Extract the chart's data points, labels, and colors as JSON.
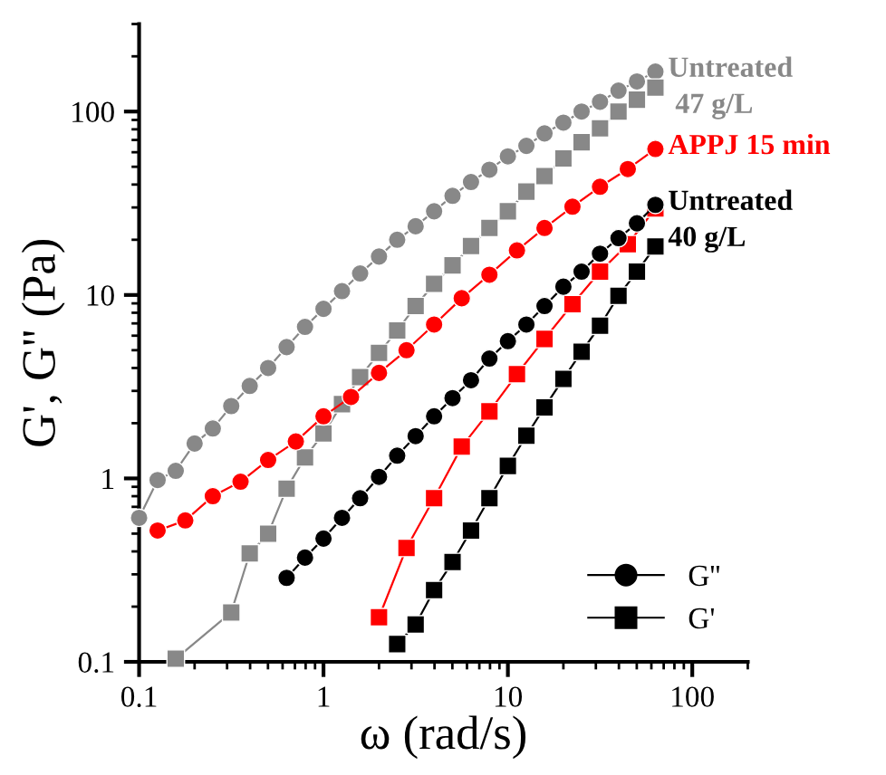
{
  "chart_data": {
    "type": "line",
    "line_style": "solid",
    "xlabel": "ω (rad/s)",
    "ylabel": "G', G'' (Pa)",
    "log": "xy",
    "xlim": [
      0.1,
      200
    ],
    "ylim": [
      0.1,
      300
    ],
    "xticks": [
      {
        "value": 0.1,
        "label": "0.1"
      },
      1,
      10,
      100
    ],
    "yticks": [
      {
        "value": 0.1,
        "label": "0.1"
      },
      1,
      10,
      100
    ],
    "grid": false,
    "legend": "bottom right",
    "tick_labels": true,
    "series": [
      {
        "color": "#888888",
        "marker": "circle",
        "x": [
          0.1,
          0.126,
          0.158,
          0.2,
          0.251,
          0.316,
          0.398,
          0.501,
          0.631,
          0.794,
          1,
          1.26,
          1.58,
          2,
          2.51,
          3.16,
          3.98,
          5.01,
          6.31,
          7.94,
          10,
          12.6,
          15.8,
          20,
          25.1,
          31.6,
          39.8,
          50.1,
          63.1
        ],
        "values": [
          0.61,
          0.98,
          1.1,
          1.55,
          1.87,
          2.48,
          3.19,
          4.0,
          5.2,
          6.7,
          8.4,
          10.5,
          13.1,
          16.2,
          20,
          23.7,
          28.6,
          34.7,
          41.3,
          48.2,
          57,
          65,
          76,
          87,
          100,
          113,
          130,
          146,
          165
        ]
      },
      {
        "color": "#888888",
        "marker": "square",
        "x": [
          0.158,
          0.316,
          0.398,
          0.501,
          0.631,
          0.794,
          1,
          1.26,
          1.58,
          2,
          2.51,
          3.16,
          3.98,
          5.01,
          6.31,
          7.94,
          10,
          12.6,
          15.8,
          20,
          25.1,
          31.6,
          39.8,
          50.1,
          63.1
        ],
        "values": [
          0.104,
          0.186,
          0.39,
          0.5,
          0.88,
          1.3,
          1.76,
          2.54,
          3.57,
          4.83,
          6.4,
          8.7,
          11.5,
          14.5,
          18.5,
          23.2,
          28.6,
          36.6,
          44.5,
          55.5,
          68,
          81,
          100,
          116,
          135
        ]
      },
      {
        "color": "#ff0000",
        "marker": "circle",
        "x": [
          0.126,
          0.178,
          0.251,
          0.355,
          0.501,
          0.708,
          1,
          1.41,
          2,
          2.82,
          3.98,
          5.62,
          7.94,
          11.2,
          15.8,
          22.4,
          31.6,
          44.7,
          63.1
        ],
        "values": [
          0.52,
          0.59,
          0.8,
          0.96,
          1.26,
          1.59,
          2.18,
          2.78,
          3.76,
          5.0,
          6.9,
          9.6,
          12.9,
          17.5,
          23.2,
          30.3,
          38.9,
          48.6,
          62.5
        ]
      },
      {
        "color": "#ff0000",
        "marker": "square",
        "x": [
          2,
          2.82,
          3.98,
          5.62,
          7.94,
          11.2,
          15.8,
          22.4,
          31.6,
          44.7,
          63.1
        ],
        "values": [
          0.175,
          0.418,
          0.78,
          1.49,
          2.32,
          3.7,
          5.76,
          8.9,
          13.4,
          18.9,
          29.6
        ]
      },
      {
        "name": "G''",
        "color": "#000000",
        "marker": "circle",
        "x": [
          0.631,
          0.794,
          1,
          1.26,
          1.58,
          2,
          2.51,
          3.16,
          3.98,
          5.01,
          6.31,
          7.94,
          10,
          12.6,
          15.8,
          20,
          25.1,
          31.6,
          39.8,
          50.1,
          63.1
        ],
        "values": [
          0.287,
          0.37,
          0.47,
          0.61,
          0.78,
          1.02,
          1.33,
          1.7,
          2.18,
          2.74,
          3.43,
          4.5,
          5.6,
          6.9,
          8.7,
          11.1,
          13.4,
          16.8,
          20.4,
          24.6,
          31.0
        ]
      },
      {
        "name": "G'",
        "color": "#000000",
        "marker": "square",
        "x": [
          2.51,
          3.16,
          3.98,
          5.01,
          6.31,
          7.94,
          10,
          12.6,
          15.8,
          20,
          25.1,
          31.6,
          39.8,
          50.1,
          63.1
        ],
        "values": [
          0.125,
          0.16,
          0.246,
          0.35,
          0.52,
          0.78,
          1.17,
          1.71,
          2.44,
          3.49,
          4.9,
          6.8,
          9.9,
          13.4,
          18.4
        ]
      }
    ],
    "annotations": [
      "Untreated\n 47 g/L",
      "APPJ 15 min",
      "Untreated\n40 g/L"
    ]
  }
}
